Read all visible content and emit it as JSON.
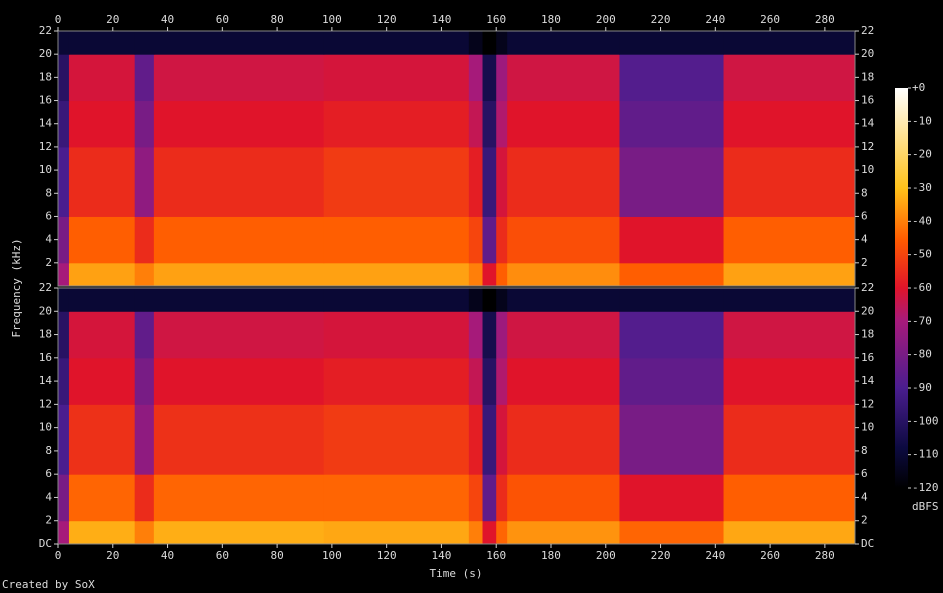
{
  "chart_data": {
    "type": "spectrogram",
    "x_label": "Time (s)",
    "y_label": "Frequency (kHz)",
    "xlim": [
      0,
      291
    ],
    "xticks": [
      0,
      20,
      40,
      60,
      80,
      100,
      120,
      140,
      160,
      180,
      200,
      220,
      240,
      260,
      280
    ],
    "ylim": [
      0,
      22
    ],
    "panels": [
      {
        "yticks": [
          2,
          4,
          6,
          8,
          10,
          12,
          14,
          16,
          18,
          20,
          22
        ]
      },
      {
        "yticks": [
          {
            "value": 0,
            "label": "DC"
          },
          2,
          4,
          6,
          8,
          10,
          12,
          14,
          16,
          18,
          20,
          22
        ]
      }
    ],
    "time_edges": [
      0,
      4,
      28,
      35,
      97,
      150,
      155,
      160,
      164,
      205,
      243,
      291
    ],
    "freq_edges": [
      0,
      2,
      6,
      12,
      16,
      20,
      22
    ],
    "channels": [
      {
        "values": [
          [
            -70,
            -35,
            -40,
            -35,
            -35,
            -40,
            -60,
            -45,
            -38,
            -45,
            -35
          ],
          [
            -80,
            -45,
            -55,
            -45,
            -45,
            -50,
            -85,
            -55,
            -48,
            -60,
            -45
          ],
          [
            -90,
            -55,
            -75,
            -55,
            -52,
            -58,
            -95,
            -62,
            -55,
            -80,
            -55
          ],
          [
            -95,
            -60,
            -80,
            -60,
            -58,
            -65,
            -100,
            -68,
            -60,
            -85,
            -60
          ],
          [
            -100,
            -62,
            -85,
            -63,
            -62,
            -70,
            -105,
            -72,
            -63,
            -88,
            -63
          ],
          [
            -110,
            -110,
            -110,
            -110,
            -110,
            -115,
            -120,
            -115,
            -110,
            -110,
            -110
          ]
        ]
      },
      {
        "values": [
          [
            -70,
            -33,
            -40,
            -33,
            -34,
            -40,
            -60,
            -44,
            -37,
            -44,
            -34
          ],
          [
            -80,
            -44,
            -55,
            -44,
            -44,
            -50,
            -85,
            -55,
            -47,
            -60,
            -45
          ],
          [
            -90,
            -54,
            -75,
            -54,
            -52,
            -58,
            -95,
            -62,
            -55,
            -80,
            -55
          ],
          [
            -95,
            -60,
            -80,
            -60,
            -58,
            -65,
            -100,
            -68,
            -60,
            -85,
            -60
          ],
          [
            -100,
            -62,
            -85,
            -63,
            -62,
            -70,
            -105,
            -72,
            -63,
            -88,
            -63
          ],
          [
            -110,
            -110,
            -110,
            -110,
            -110,
            -115,
            -120,
            -115,
            -110,
            -110,
            -110
          ]
        ]
      }
    ],
    "colorbar": {
      "label": "dBFS",
      "lim": [
        -120,
        0
      ],
      "ticks": [
        {
          "value": 0,
          "label": "+0"
        },
        -10,
        -20,
        -30,
        -40,
        -50,
        -60,
        -70,
        -80,
        -90,
        -100,
        -110,
        -120
      ]
    }
  },
  "credit": "Created by SoX"
}
